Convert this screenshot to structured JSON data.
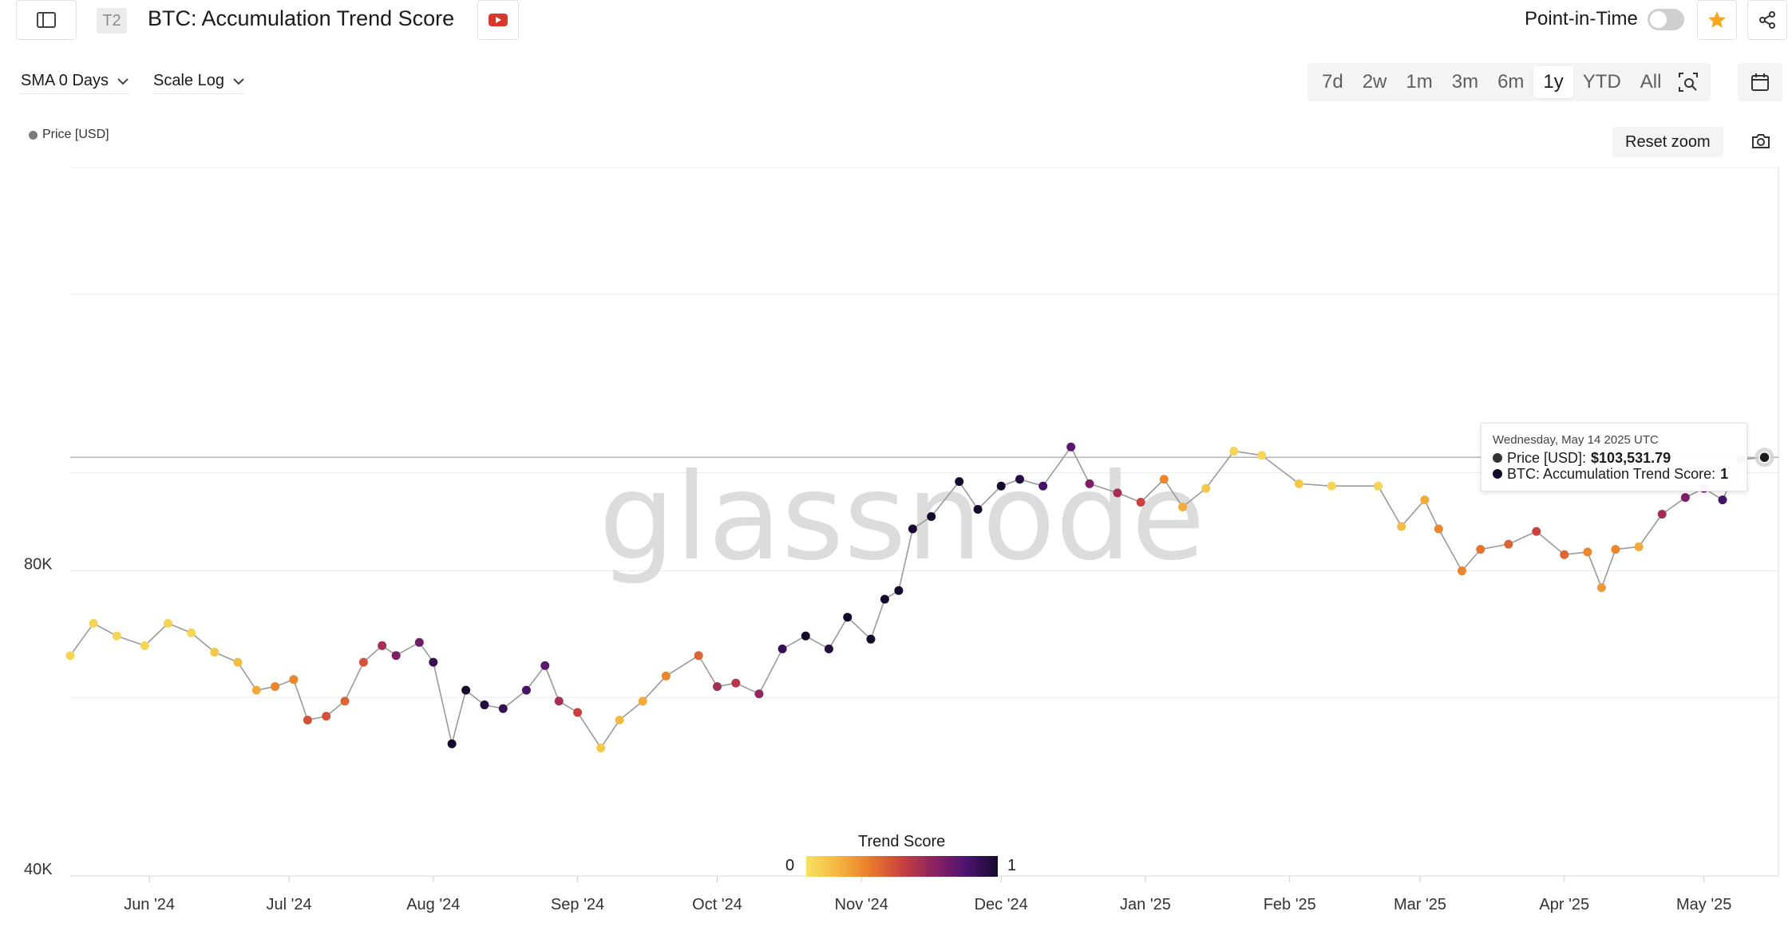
{
  "header": {
    "tier_badge": "T2",
    "title": "BTC: Accumulation Trend Score",
    "point_in_time_label": "Point-in-Time"
  },
  "controls": {
    "sma_label": "SMA 0 Days",
    "scale_label": "Scale Log",
    "ranges": [
      "7d",
      "2w",
      "1m",
      "3m",
      "6m",
      "1y",
      "YTD",
      "All"
    ],
    "active_range": "1y",
    "reset_zoom_label": "Reset zoom"
  },
  "legend": {
    "series_label": "Price [USD]"
  },
  "watermark": "glassnode",
  "color_scale": {
    "title": "Trend Score",
    "min_label": "0",
    "max_label": "1"
  },
  "tooltip": {
    "date": "Wednesday, May 14 2025 UTC",
    "price_label": "Price [USD]:",
    "price_value": "$103,531.79",
    "score_label": "BTC: Accumulation Trend Score:",
    "score_value": "1"
  },
  "colors": {
    "accent_star": "#f5a623",
    "youtube_red": "#d6392b",
    "line": "#9a9a9a"
  },
  "chart_data": {
    "type": "scatter",
    "title": "BTC: Accumulation Trend Score",
    "ylabel": "Price [USD]",
    "y_scale": "log",
    "ylim": [
      40000,
      200000
    ],
    "y_ticks": [
      {
        "value": 40000,
        "label": "40K"
      },
      {
        "value": 80000,
        "label": "80K"
      }
    ],
    "x_range": [
      "2024-05-15",
      "2025-05-17"
    ],
    "x_ticks": [
      {
        "date": "2024-06-01",
        "label": "Jun '24"
      },
      {
        "date": "2024-07-01",
        "label": "Jul '24"
      },
      {
        "date": "2024-08-01",
        "label": "Aug '24"
      },
      {
        "date": "2024-09-01",
        "label": "Sep '24"
      },
      {
        "date": "2024-10-01",
        "label": "Oct '24"
      },
      {
        "date": "2024-11-01",
        "label": "Nov '24"
      },
      {
        "date": "2024-12-01",
        "label": "Dec '24"
      },
      {
        "date": "2025-01-01",
        "label": "Jan '25"
      },
      {
        "date": "2025-02-01",
        "label": "Feb '25"
      },
      {
        "date": "2025-03-01",
        "label": "Mar '25"
      },
      {
        "date": "2025-04-01",
        "label": "Apr '25"
      },
      {
        "date": "2025-05-01",
        "label": "May '25"
      }
    ],
    "color_by": "Trend Score",
    "series": [
      {
        "name": "Price [USD]",
        "points": [
          {
            "date": "2024-05-15",
            "price": 66000,
            "score": 0.05
          },
          {
            "date": "2024-05-20",
            "price": 71000,
            "score": 0.05
          },
          {
            "date": "2024-05-25",
            "price": 69000,
            "score": 0.05
          },
          {
            "date": "2024-05-31",
            "price": 67500,
            "score": 0.05
          },
          {
            "date": "2024-06-05",
            "price": 71000,
            "score": 0.05
          },
          {
            "date": "2024-06-10",
            "price": 69500,
            "score": 0.05
          },
          {
            "date": "2024-06-15",
            "price": 66500,
            "score": 0.1
          },
          {
            "date": "2024-06-20",
            "price": 65000,
            "score": 0.15
          },
          {
            "date": "2024-06-24",
            "price": 61000,
            "score": 0.2
          },
          {
            "date": "2024-06-28",
            "price": 61500,
            "score": 0.3
          },
          {
            "date": "2024-07-02",
            "price": 62500,
            "score": 0.3
          },
          {
            "date": "2024-07-05",
            "price": 57000,
            "score": 0.45
          },
          {
            "date": "2024-07-09",
            "price": 57500,
            "score": 0.45
          },
          {
            "date": "2024-07-13",
            "price": 59500,
            "score": 0.4
          },
          {
            "date": "2024-07-17",
            "price": 65000,
            "score": 0.45
          },
          {
            "date": "2024-07-21",
            "price": 67500,
            "score": 0.6
          },
          {
            "date": "2024-07-24",
            "price": 66000,
            "score": 0.7
          },
          {
            "date": "2024-07-29",
            "price": 68000,
            "score": 0.75
          },
          {
            "date": "2024-08-01",
            "price": 65000,
            "score": 0.9
          },
          {
            "date": "2024-08-05",
            "price": 54000,
            "score": 1
          },
          {
            "date": "2024-08-08",
            "price": 61000,
            "score": 1
          },
          {
            "date": "2024-08-12",
            "price": 59000,
            "score": 0.95
          },
          {
            "date": "2024-08-16",
            "price": 58500,
            "score": 0.9
          },
          {
            "date": "2024-08-21",
            "price": 61000,
            "score": 0.85
          },
          {
            "date": "2024-08-25",
            "price": 64500,
            "score": 0.8
          },
          {
            "date": "2024-08-28",
            "price": 59500,
            "score": 0.6
          },
          {
            "date": "2024-09-01",
            "price": 58000,
            "score": 0.5
          },
          {
            "date": "2024-09-06",
            "price": 53500,
            "score": 0.1
          },
          {
            "date": "2024-09-10",
            "price": 57000,
            "score": 0.15
          },
          {
            "date": "2024-09-15",
            "price": 59500,
            "score": 0.2
          },
          {
            "date": "2024-09-20",
            "price": 63000,
            "score": 0.3
          },
          {
            "date": "2024-09-27",
            "price": 66000,
            "score": 0.4
          },
          {
            "date": "2024-10-01",
            "price": 61500,
            "score": 0.6
          },
          {
            "date": "2024-10-05",
            "price": 62000,
            "score": 0.55
          },
          {
            "date": "2024-10-10",
            "price": 60500,
            "score": 0.65
          },
          {
            "date": "2024-10-15",
            "price": 67000,
            "score": 0.9
          },
          {
            "date": "2024-10-20",
            "price": 69000,
            "score": 1
          },
          {
            "date": "2024-10-25",
            "price": 67000,
            "score": 0.95
          },
          {
            "date": "2024-10-29",
            "price": 72000,
            "score": 1
          },
          {
            "date": "2024-11-03",
            "price": 68500,
            "score": 1
          },
          {
            "date": "2024-11-06",
            "price": 75000,
            "score": 1
          },
          {
            "date": "2024-11-09",
            "price": 76500,
            "score": 1
          },
          {
            "date": "2024-11-12",
            "price": 88000,
            "score": 1
          },
          {
            "date": "2024-11-16",
            "price": 90500,
            "score": 1
          },
          {
            "date": "2024-11-22",
            "price": 98000,
            "score": 1
          },
          {
            "date": "2024-11-26",
            "price": 92000,
            "score": 1
          },
          {
            "date": "2024-12-01",
            "price": 97000,
            "score": 1
          },
          {
            "date": "2024-12-05",
            "price": 98500,
            "score": 0.95
          },
          {
            "date": "2024-12-10",
            "price": 97000,
            "score": 0.85
          },
          {
            "date": "2024-12-16",
            "price": 106000,
            "score": 0.8
          },
          {
            "date": "2024-12-20",
            "price": 97500,
            "score": 0.7
          },
          {
            "date": "2024-12-26",
            "price": 95500,
            "score": 0.6
          },
          {
            "date": "2024-12-31",
            "price": 93500,
            "score": 0.5
          },
          {
            "date": "2025-01-05",
            "price": 98500,
            "score": 0.3
          },
          {
            "date": "2025-01-09",
            "price": 92500,
            "score": 0.2
          },
          {
            "date": "2025-01-14",
            "price": 96500,
            "score": 0.1
          },
          {
            "date": "2025-01-20",
            "price": 105000,
            "score": 0.05
          },
          {
            "date": "2025-01-26",
            "price": 104000,
            "score": 0.05
          },
          {
            "date": "2025-02-03",
            "price": 97500,
            "score": 0.1
          },
          {
            "date": "2025-02-10",
            "price": 97000,
            "score": 0.05
          },
          {
            "date": "2025-02-20",
            "price": 97000,
            "score": 0.05
          },
          {
            "date": "2025-02-25",
            "price": 88500,
            "score": 0.15
          },
          {
            "date": "2025-03-02",
            "price": 94000,
            "score": 0.2
          },
          {
            "date": "2025-03-05",
            "price": 88000,
            "score": 0.3
          },
          {
            "date": "2025-03-10",
            "price": 80000,
            "score": 0.3
          },
          {
            "date": "2025-03-14",
            "price": 84000,
            "score": 0.35
          },
          {
            "date": "2025-03-20",
            "price": 85000,
            "score": 0.4
          },
          {
            "date": "2025-03-26",
            "price": 87500,
            "score": 0.5
          },
          {
            "date": "2025-04-01",
            "price": 83000,
            "score": 0.4
          },
          {
            "date": "2025-04-06",
            "price": 83500,
            "score": 0.3
          },
          {
            "date": "2025-04-09",
            "price": 77000,
            "score": 0.25
          },
          {
            "date": "2025-04-12",
            "price": 84000,
            "score": 0.3
          },
          {
            "date": "2025-04-17",
            "price": 84500,
            "score": 0.2
          },
          {
            "date": "2025-04-22",
            "price": 91000,
            "score": 0.6
          },
          {
            "date": "2025-04-27",
            "price": 94500,
            "score": 0.7
          },
          {
            "date": "2025-05-01",
            "price": 96500,
            "score": 0.8
          },
          {
            "date": "2025-05-05",
            "price": 94000,
            "score": 0.85
          },
          {
            "date": "2025-05-09",
            "price": 103000,
            "score": 0.95
          },
          {
            "date": "2025-05-14",
            "price": 103531.79,
            "score": 1
          }
        ]
      }
    ],
    "hover_point": {
      "date": "2025-05-14",
      "price": 103531.79,
      "score": 1
    },
    "legend_position": "top-left",
    "grid": true
  }
}
